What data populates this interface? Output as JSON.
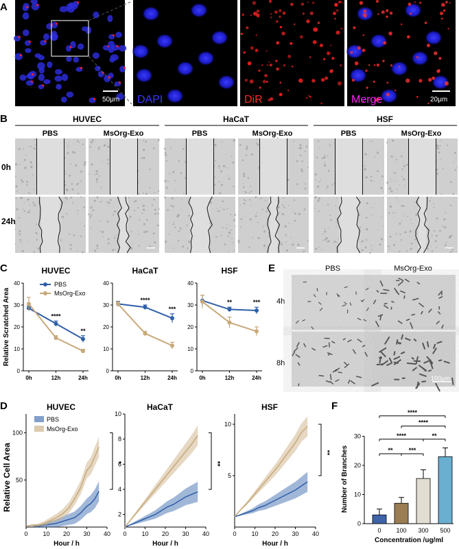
{
  "panels": {
    "a": "A",
    "b": "B",
    "c": "C",
    "d": "D",
    "e": "E",
    "f": "F"
  },
  "panelA": {
    "scalebar_left": "50μm",
    "scalebar_right": "20μm",
    "channels": [
      {
        "label": "DAPI",
        "color": "#3a3aff"
      },
      {
        "label": "DiR",
        "color": "#ff2a2a"
      },
      {
        "label": "Merge",
        "color": "#ff20ff"
      }
    ]
  },
  "panelB": {
    "groups": [
      "HUVEC",
      "HaCaT",
      "HSF"
    ],
    "conditions": [
      "PBS",
      "MsOrg-Exo"
    ],
    "times": [
      "0h",
      "24h"
    ]
  },
  "panelE": {
    "conditions": [
      "PBS",
      "MsOrg-Exo"
    ],
    "times": [
      "4h",
      "8h"
    ],
    "scalebar": "100μm"
  },
  "chart_data": [
    {
      "type": "line",
      "title": "HUVEC",
      "ylabel": "Relative Scratched Area",
      "x": [
        "0h",
        "12h",
        "24h"
      ],
      "ylim": [
        0,
        40
      ],
      "yticks": [
        0,
        10,
        20,
        30,
        40
      ],
      "legend": [
        "PBS",
        "MsOrg-Exo"
      ],
      "series": [
        {
          "name": "PBS",
          "values": [
            28.5,
            21.5,
            14.5
          ],
          "err": [
            1.0,
            1.2,
            1.5
          ],
          "color": "#2e5fa8"
        },
        {
          "name": "MsOrg-Exo",
          "values": [
            30.5,
            15.0,
            9.0
          ],
          "err": [
            3.0,
            1.0,
            0.8
          ],
          "color": "#c7a97a"
        }
      ],
      "annotations": [
        "****",
        "**"
      ]
    },
    {
      "type": "line",
      "title": "HaCaT",
      "x": [
        "0h",
        "12h",
        "24h"
      ],
      "ylim": [
        0,
        40
      ],
      "yticks": [
        0,
        10,
        20,
        30,
        40
      ],
      "series": [
        {
          "name": "PBS",
          "values": [
            30.5,
            29.0,
            24.0
          ],
          "err": [
            1.2,
            1.0,
            2.0
          ],
          "color": "#2e5fa8"
        },
        {
          "name": "MsOrg-Exo",
          "values": [
            30.5,
            17.0,
            11.5
          ],
          "err": [
            1.0,
            1.0,
            1.5
          ],
          "color": "#c7a97a"
        }
      ],
      "annotations": [
        "****",
        "***"
      ]
    },
    {
      "type": "line",
      "title": "HSF",
      "x": [
        "0h",
        "12h",
        "24h"
      ],
      "ylim": [
        0,
        40
      ],
      "yticks": [
        0,
        10,
        20,
        30,
        40
      ],
      "series": [
        {
          "name": "PBS",
          "values": [
            32.0,
            28.0,
            27.5
          ],
          "err": [
            2.5,
            1.0,
            1.5
          ],
          "color": "#2e5fa8"
        },
        {
          "name": "MsOrg-Exo",
          "values": [
            31.5,
            22.0,
            18.0
          ],
          "err": [
            3.0,
            2.5,
            2.0
          ],
          "color": "#c7a97a"
        }
      ],
      "annotations": [
        "**",
        "***"
      ]
    },
    {
      "type": "area",
      "title": "HUVEC",
      "xlabel": "Hour / h",
      "ylabel": "Relative Cell Area",
      "xlim": [
        0,
        40
      ],
      "ylim": [
        0,
        120
      ],
      "xticks": [
        0,
        10,
        20,
        30,
        40
      ],
      "yticks": [
        50,
        100
      ],
      "legend": [
        "PBS",
        "MsOrg-Exo"
      ],
      "x": [
        0,
        3,
        6,
        9,
        12,
        15,
        18,
        21,
        24,
        27,
        30,
        32,
        34,
        36
      ],
      "series": [
        {
          "name": "PBS",
          "values": [
            1,
            2,
            1,
            2,
            3,
            4,
            6,
            8,
            10,
            15,
            22,
            25,
            30,
            38
          ],
          "color": "#2e5fa8"
        },
        {
          "name": "MsOrg-Exo",
          "values": [
            1,
            2,
            2,
            4,
            7,
            10,
            14,
            20,
            30,
            42,
            60,
            65,
            75,
            85
          ],
          "color": "#c7a97a"
        }
      ],
      "annotations": [
        "*"
      ]
    },
    {
      "type": "area",
      "title": "HaCaT",
      "xlabel": "Hour / h",
      "xlim": [
        0,
        40
      ],
      "ylim": [
        1,
        10
      ],
      "xticks": [
        0,
        10,
        20,
        30,
        40
      ],
      "yticks": [
        2,
        4,
        6,
        8,
        10
      ],
      "x": [
        0,
        3,
        6,
        9,
        12,
        15,
        18,
        21,
        24,
        27,
        30,
        33,
        36
      ],
      "series": [
        {
          "name": "PBS",
          "values": [
            1.0,
            1.2,
            1.4,
            1.6,
            1.8,
            2.0,
            2.3,
            2.6,
            2.8,
            3.1,
            3.4,
            3.6,
            3.8
          ],
          "color": "#2e5fa8"
        },
        {
          "name": "MsOrg-Exo",
          "values": [
            1.0,
            1.6,
            2.2,
            2.8,
            3.4,
            4.0,
            4.6,
            5.2,
            5.8,
            6.4,
            7.0,
            7.6,
            8.3
          ],
          "color": "#c7a97a"
        }
      ],
      "annotations": [
        "**"
      ]
    },
    {
      "type": "area",
      "title": "HSF",
      "xlabel": "Hour / h",
      "xlim": [
        0,
        40
      ],
      "ylim": [
        0,
        11
      ],
      "xticks": [
        0,
        10,
        20,
        30,
        40
      ],
      "yticks": [
        5,
        10
      ],
      "x": [
        0,
        3,
        6,
        9,
        12,
        15,
        18,
        21,
        24,
        27,
        30,
        33,
        36
      ],
      "series": [
        {
          "name": "PBS",
          "values": [
            1.0,
            1.2,
            1.4,
            1.6,
            1.9,
            2.1,
            2.4,
            2.7,
            3.0,
            3.3,
            3.6,
            4.0,
            4.4
          ],
          "color": "#2e5fa8"
        },
        {
          "name": "MsOrg-Exo",
          "values": [
            1.0,
            1.7,
            2.3,
            3.0,
            3.7,
            4.4,
            5.1,
            5.8,
            6.6,
            7.4,
            8.2,
            9.2,
            9.8
          ],
          "color": "#c7a97a"
        }
      ],
      "annotations": [
        "**"
      ]
    },
    {
      "type": "bar",
      "xlabel": "Concentration /ug/ml",
      "ylabel": "Number of Branches",
      "categories": [
        "0",
        "100",
        "300",
        "500"
      ],
      "values": [
        3,
        7,
        15.5,
        23
      ],
      "err": [
        2,
        2,
        3,
        3
      ],
      "colors": [
        "#3e63a8",
        "#9a7d52",
        "#e2ddd2",
        "#6aaed0"
      ],
      "ylim": [
        0,
        40
      ],
      "yticks": [
        0,
        10,
        20,
        30
      ],
      "annotations": [
        "****",
        "****",
        "****",
        "**",
        "**",
        "***"
      ]
    }
  ]
}
